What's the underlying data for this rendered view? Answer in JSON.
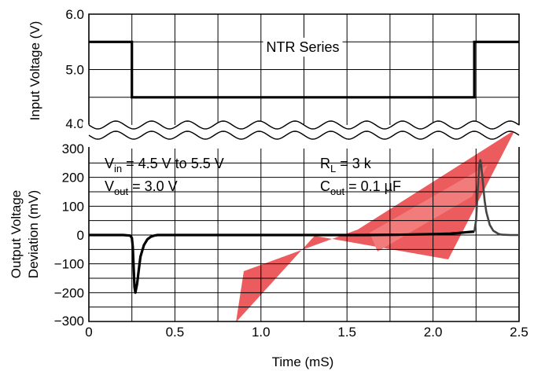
{
  "chart_data": {
    "type": "line",
    "x_ticks": [
      "0",
      "0.5",
      "1.0",
      "1.5",
      "2.0",
      "2.5"
    ],
    "xlabel": "Time (mS)",
    "xlim": [
      0,
      2.5
    ],
    "top_panel": {
      "ylabel": "Input Voltage (V)",
      "y_ticks": [
        "6.0",
        "5.0",
        "4.0"
      ],
      "ylim": [
        4.0,
        6.0
      ],
      "annotation": "NTR Series",
      "series": [
        {
          "x": [
            0,
            0.25,
            0.25,
            2.24,
            2.24,
            2.5
          ],
          "y": [
            5.5,
            5.5,
            4.5,
            4.5,
            5.5,
            5.5
          ]
        }
      ]
    },
    "bottom_panel": {
      "ylabel_line1": "Output Voltage",
      "ylabel_line2": "Deviation (mV)",
      "y_ticks": [
        "300",
        "200",
        "100",
        "0",
        "−100",
        "−200",
        "−300"
      ],
      "ylim": [
        -300,
        300
      ],
      "annotation_vin": {
        "base": "V",
        "sub": "in",
        "rest": " = 4.5 V to 5.5 V"
      },
      "annotation_vout": {
        "base": "V",
        "sub": "out",
        "rest": " = 3.0 V"
      },
      "annotation_rl": {
        "base": "R",
        "sub": "L",
        "rest": " = 3 k"
      },
      "annotation_cout": {
        "base": "C",
        "sub": "out",
        "rest": " = 0.1 µF"
      },
      "series": [
        {
          "x": [
            0,
            0.2,
            0.24,
            0.25,
            0.255,
            0.26,
            0.265,
            0.27,
            0.28,
            0.29,
            0.3,
            0.32,
            0.34,
            0.36,
            0.38,
            0.4,
            0.45,
            1.6,
            1.8,
            2.0,
            2.1,
            2.15,
            2.2,
            2.22,
            2.24
          ],
          "y": [
            0,
            0,
            -2,
            -10,
            -40,
            -110,
            -180,
            -200,
            -170,
            -120,
            -75,
            -35,
            -15,
            -6,
            -2,
            0,
            0,
            0,
            1,
            3,
            5,
            7,
            10,
            11,
            12
          ],
          "color": "#000000"
        },
        {
          "x": [
            2.24,
            2.25,
            2.26,
            2.27,
            2.275,
            2.28,
            2.29,
            2.3,
            2.31,
            2.33,
            2.35,
            2.38,
            2.4,
            2.45,
            2.5
          ],
          "y": [
            12,
            50,
            160,
            250,
            260,
            240,
            180,
            120,
            80,
            35,
            15,
            4,
            1,
            0,
            0
          ],
          "color": "#444444"
        }
      ]
    }
  }
}
